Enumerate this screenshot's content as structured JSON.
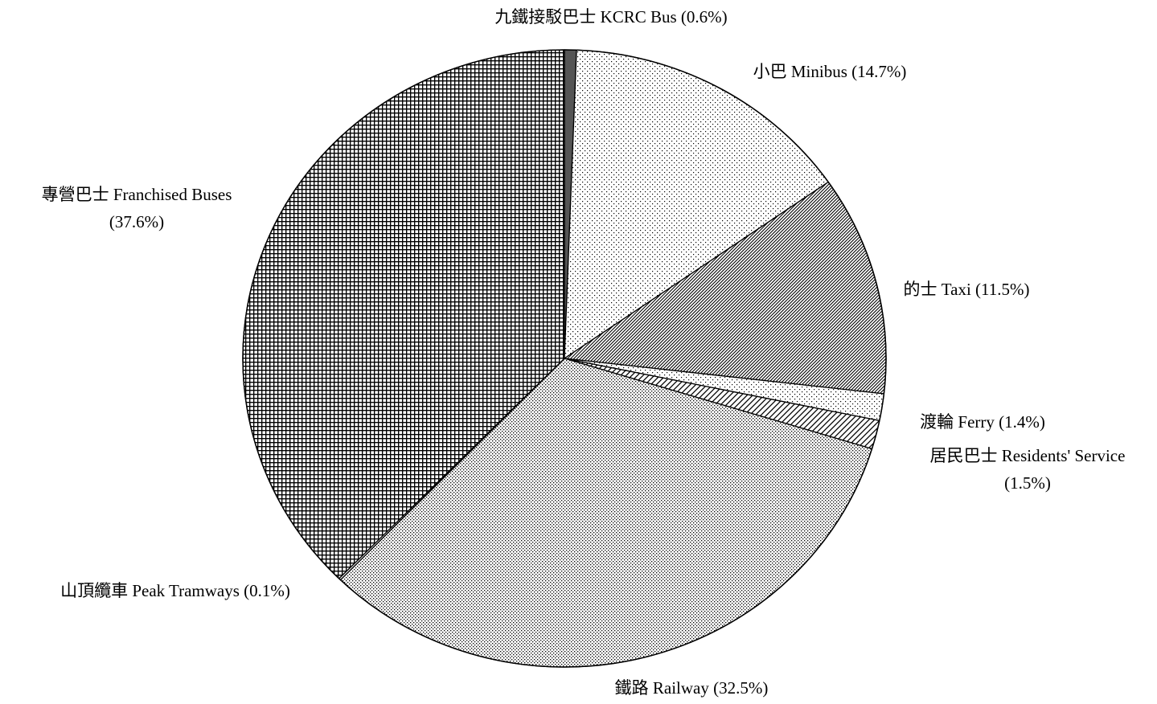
{
  "chart_data": {
    "type": "pie",
    "slices": [
      {
        "name": "九鐵接駁巴士 KCRC Bus",
        "value": 0.6,
        "pattern": "dark-solid",
        "label_lines": [
          "九鐵接駁巴士 KCRC Bus (0.6%)"
        ]
      },
      {
        "name": "小巴 Minibus",
        "value": 14.7,
        "pattern": "sparse-dots",
        "label_lines": [
          "小巴 Minibus (14.7%)"
        ]
      },
      {
        "name": "的士 Taxi",
        "value": 11.5,
        "pattern": "diagonal-hatch",
        "label_lines": [
          "的士 Taxi (11.5%)"
        ]
      },
      {
        "name": "渡輪 Ferry",
        "value": 1.4,
        "pattern": "sparse-dots",
        "label_lines": [
          "渡輪 Ferry (1.4%)"
        ]
      },
      {
        "name": "居民巴士 Residents' Service",
        "value": 1.5,
        "pattern": "wide-diagonal",
        "label_lines": [
          "居民巴士 Residents' Service",
          "(1.5%)"
        ]
      },
      {
        "name": "鐵路 Railway",
        "value": 32.5,
        "pattern": "fine-dots",
        "label_lines": [
          "鐵路 Railway (32.5%)"
        ]
      },
      {
        "name": "山頂纜車 Peak Tramways",
        "value": 0.1,
        "pattern": "fine-dots",
        "label_lines": [
          "山頂纜車 Peak Tramways (0.1%)"
        ]
      },
      {
        "name": "專營巴士 Franchised Buses",
        "value": 37.6,
        "pattern": "crosshatch",
        "label_lines": [
          "專營巴士 Franchised Buses",
          "(37.6%)"
        ]
      }
    ],
    "start": "12 o'clock",
    "direction": "clockwise",
    "legend": "none"
  },
  "colors": {
    "background": "#ffffff",
    "outline": "#000000",
    "dark_slice": "#555555",
    "pattern_ink": "#000000"
  }
}
